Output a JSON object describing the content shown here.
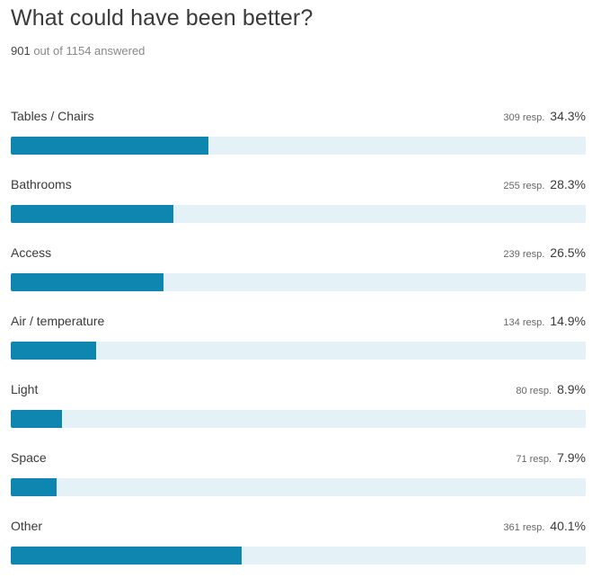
{
  "header": {
    "title": "What could have been better?",
    "answered_count": "901",
    "answered_rest": "out of 1154 answered"
  },
  "colors": {
    "bar_fill": "#0e86b0",
    "bar_track": "#e4f1f7"
  },
  "chart_data": {
    "type": "bar",
    "orientation": "horizontal",
    "title": "What could have been better?",
    "xlim": [
      0,
      100
    ],
    "categories": [
      "Tables / Chairs",
      "Bathrooms",
      "Access",
      "Air / temperature",
      "Light",
      "Space",
      "Other"
    ],
    "values": [
      34.3,
      28.3,
      26.5,
      14.9,
      8.9,
      7.9,
      40.1
    ],
    "responses": [
      309,
      255,
      239,
      134,
      80,
      71,
      361
    ],
    "rows": [
      {
        "label": "Tables / Chairs",
        "resp": "309 resp.",
        "pct": "34.3%"
      },
      {
        "label": "Bathrooms",
        "resp": "255 resp.",
        "pct": "28.3%"
      },
      {
        "label": "Access",
        "resp": "239 resp.",
        "pct": "26.5%"
      },
      {
        "label": "Air / temperature",
        "resp": "134 resp.",
        "pct": "14.9%"
      },
      {
        "label": "Light",
        "resp": "80 resp.",
        "pct": "8.9%"
      },
      {
        "label": "Space",
        "resp": "71 resp.",
        "pct": "7.9%"
      },
      {
        "label": "Other",
        "resp": "361 resp.",
        "pct": "40.1%"
      }
    ]
  }
}
